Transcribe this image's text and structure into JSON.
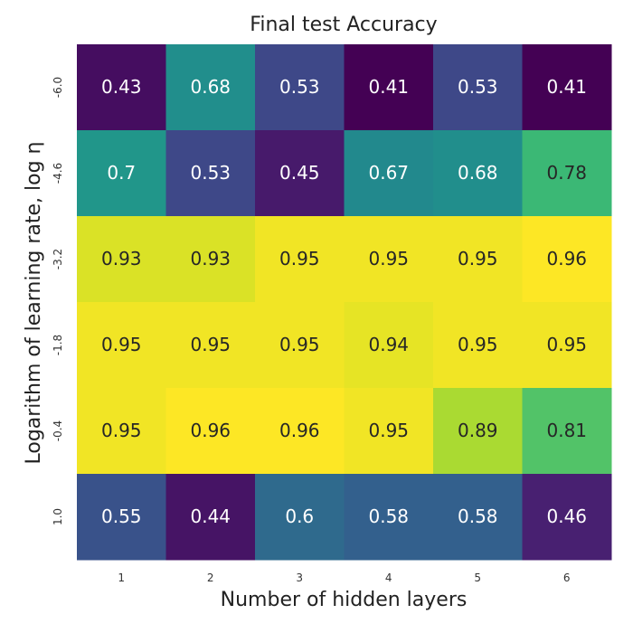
{
  "chart_data": {
    "type": "heatmap",
    "title": "Final test Accuracy",
    "xlabel": "Number of hidden layers",
    "ylabel": "Logarithm of learning rate, log η",
    "x_categories": [
      "1",
      "2",
      "3",
      "4",
      "5",
      "6"
    ],
    "y_categories": [
      "-6.0",
      "-4.6",
      "-3.2",
      "-1.8",
      "-0.4",
      "1.0"
    ],
    "values": [
      [
        0.43,
        0.68,
        0.53,
        0.41,
        0.53,
        0.41
      ],
      [
        0.7,
        0.53,
        0.45,
        0.67,
        0.68,
        0.78
      ],
      [
        0.93,
        0.93,
        0.95,
        0.95,
        0.95,
        0.96
      ],
      [
        0.95,
        0.95,
        0.95,
        0.94,
        0.95,
        0.95
      ],
      [
        0.95,
        0.96,
        0.96,
        0.95,
        0.89,
        0.81
      ],
      [
        0.55,
        0.44,
        0.6,
        0.58,
        0.58,
        0.46
      ]
    ],
    "colormap": "viridis",
    "grid": false,
    "colorbar": false
  }
}
